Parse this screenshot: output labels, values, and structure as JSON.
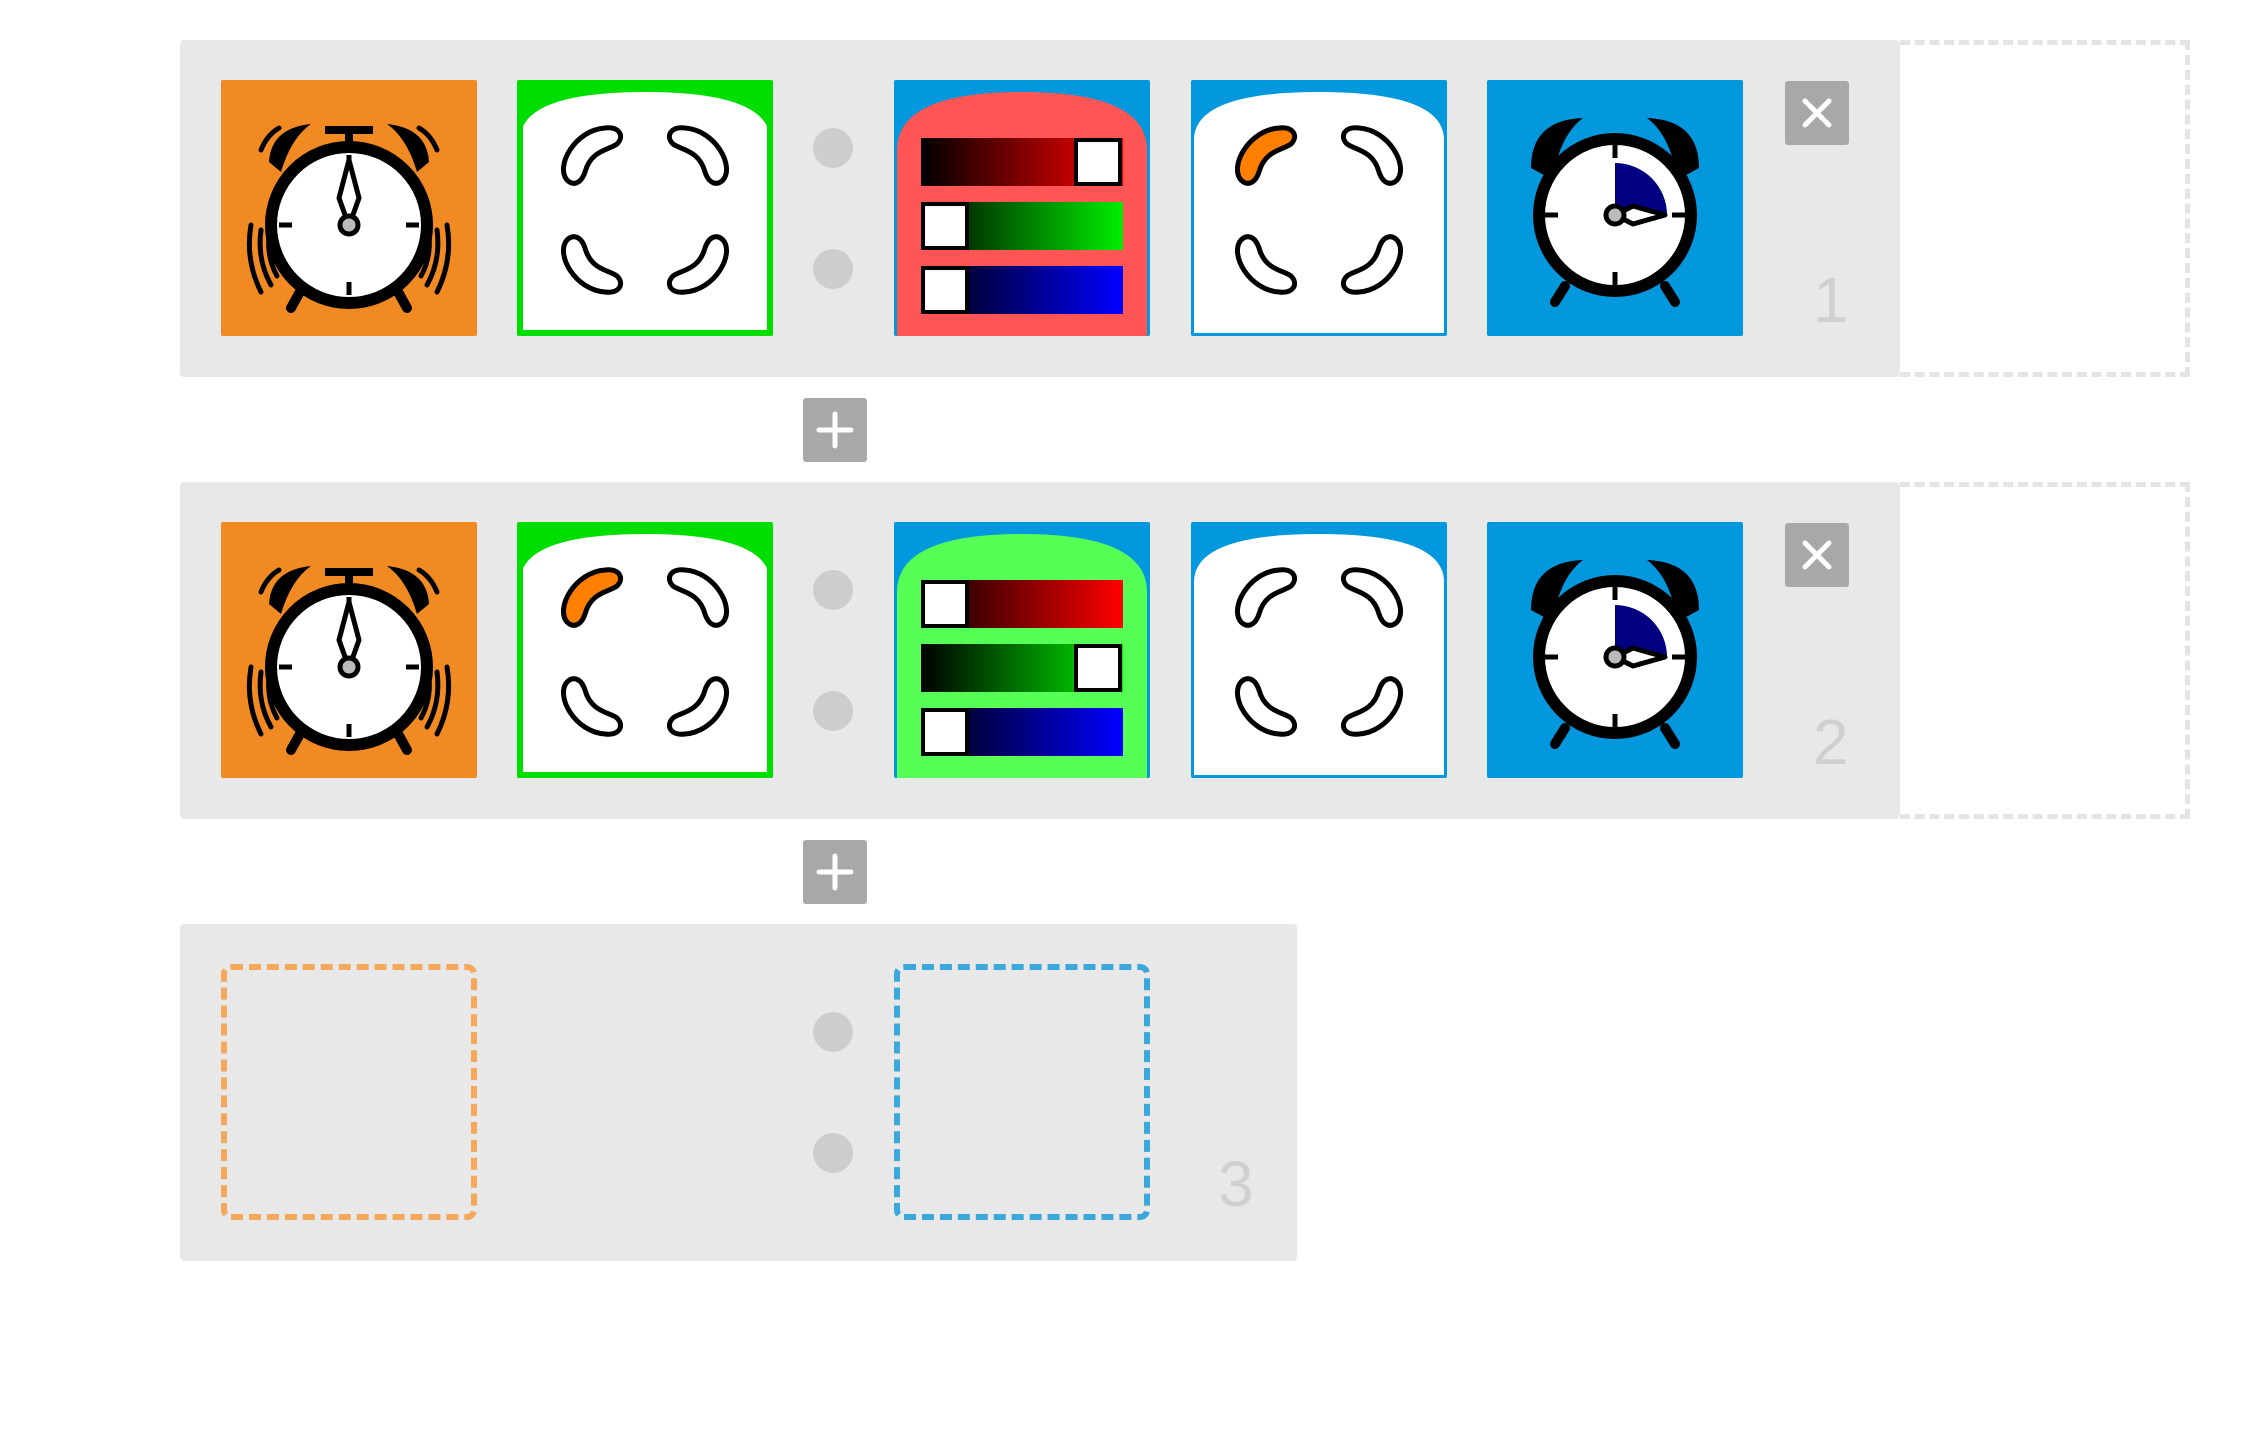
{
  "colors": {
    "row_background": "#e8e8e8",
    "alarm_orange": "#f28a24",
    "start_blue": "#0398dd",
    "pad_green": "#00dd00",
    "rgb_red": "#ff5555",
    "rgb_green": "#55ff55",
    "selected_orange": "#ff7f00",
    "clock_sector_navy": "#000080",
    "button_gray": "#a8a8a8",
    "dot_gray": "#cdcdcd",
    "orange_placeholder": "#f5a85a",
    "blue_placeholder": "#3ba8dc"
  },
  "icons": {
    "alarm_tile": "ringing-alarm-clock-icon",
    "button_pad": "four-button-pad-icon",
    "rgb_tile": "rgb-sliders-icon",
    "timer_tile": "alarm-clock-timer-icon",
    "delete": "close-icon",
    "add": "plus-icon"
  },
  "rows": [
    {
      "number": "1",
      "button_pad": {
        "selected": "none"
      },
      "rgb": {
        "background": "red",
        "levels": {
          "red": 1.0,
          "green": 0.0,
          "blue": 0.0
        }
      },
      "button_pad_2": {
        "selected": "top-left"
      },
      "timer": {
        "fill": 0.25
      }
    },
    {
      "number": "2",
      "button_pad": {
        "selected": "top-left"
      },
      "rgb": {
        "background": "green",
        "levels": {
          "red": 0.0,
          "green": 1.0,
          "blue": 0.0
        }
      },
      "button_pad_2": {
        "selected": "none"
      },
      "timer": {
        "fill": 0.25
      }
    },
    {
      "number": "3"
    }
  ]
}
